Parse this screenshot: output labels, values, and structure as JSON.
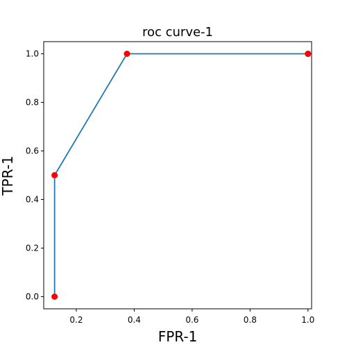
{
  "chart_data": {
    "type": "line",
    "title": "roc curve-1",
    "xlabel": "FPR-1",
    "ylabel": "TPR-1",
    "xlim": [
      0.0875,
      1.0125
    ],
    "ylim": [
      -0.05,
      1.05
    ],
    "xticks": [
      0.2,
      0.4,
      0.6,
      0.8,
      1.0
    ],
    "xtick_labels": [
      "0.2",
      "0.4",
      "0.6",
      "0.8",
      "1.0"
    ],
    "yticks": [
      0.0,
      0.2,
      0.4,
      0.6,
      0.8,
      1.0
    ],
    "ytick_labels": [
      "0.0",
      "0.2",
      "0.4",
      "0.6",
      "0.8",
      "1.0"
    ],
    "grid": false,
    "series": [
      {
        "x": [
          0.125,
          0.125,
          0.375,
          1.0,
          1.0
        ],
        "y": [
          0.0,
          0.5,
          1.0,
          1.0,
          1.0
        ],
        "line_color": "#1f77b4",
        "marker_color": "#ff0000"
      }
    ]
  }
}
